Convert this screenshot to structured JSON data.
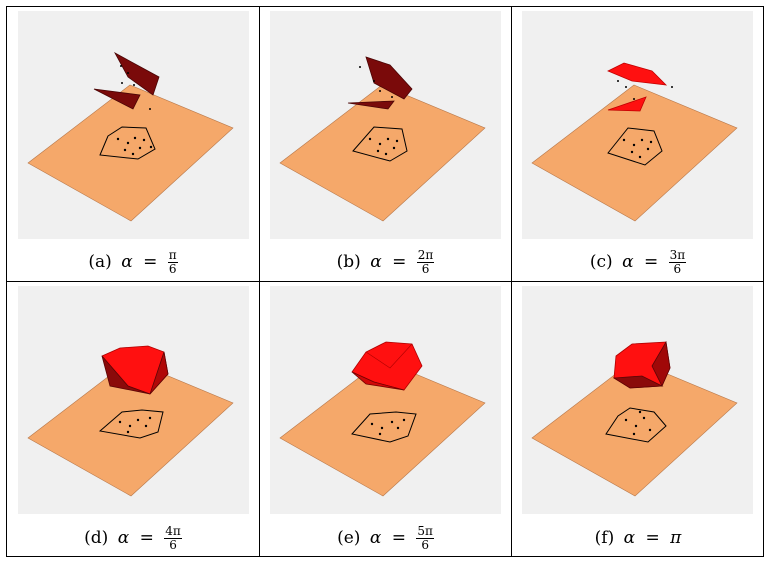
{
  "panels": [
    {
      "label": "(a)",
      "var": "α",
      "eq": "=",
      "num": "π",
      "den": "6",
      "value": ""
    },
    {
      "label": "(b)",
      "var": "α",
      "eq": "=",
      "num": "2π",
      "den": "6",
      "value": ""
    },
    {
      "label": "(c)",
      "var": "α",
      "eq": "=",
      "num": "3π",
      "den": "6",
      "value": ""
    },
    {
      "label": "(d)",
      "var": "α",
      "eq": "=",
      "num": "4π",
      "den": "6",
      "value": ""
    },
    {
      "label": "(e)",
      "var": "α",
      "eq": "=",
      "num": "5π",
      "den": "6",
      "value": ""
    },
    {
      "label": "(f)",
      "var": "α",
      "eq": "=",
      "num": "",
      "den": "",
      "value": "π"
    }
  ],
  "colors": {
    "plane": "#f5a86a",
    "plot_background": "#f0f0f0",
    "shape_dark": "#7a0a0a",
    "shape_bright": "#ff1010"
  }
}
